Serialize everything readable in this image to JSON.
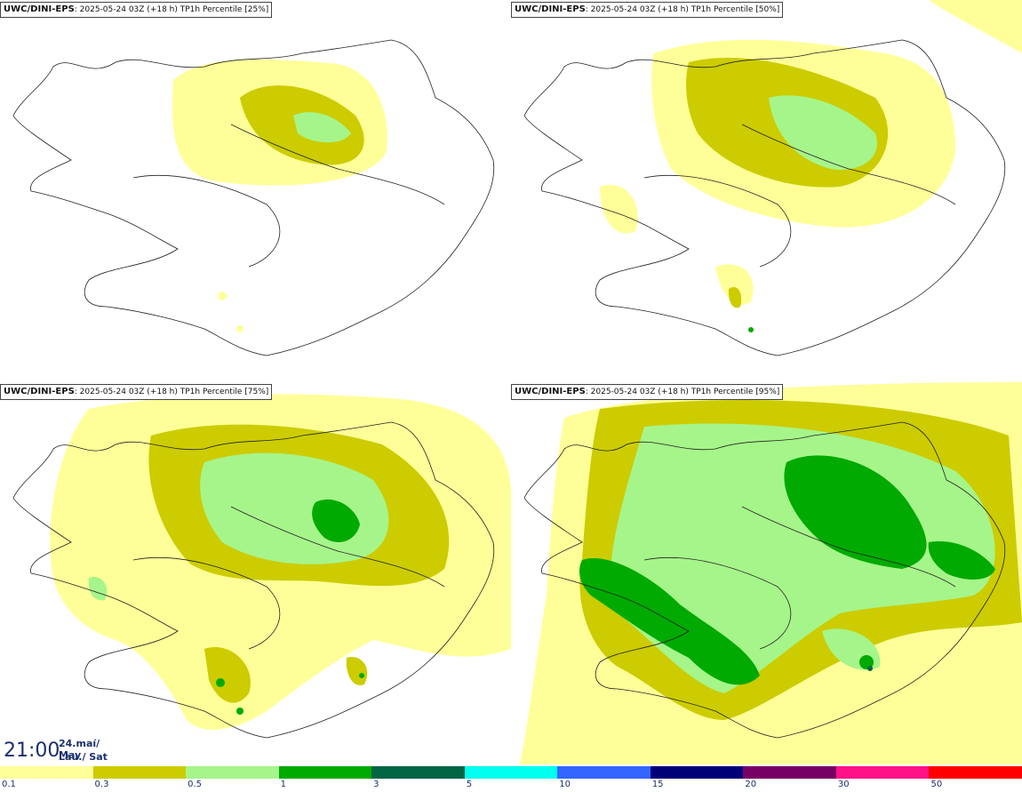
{
  "panels": [
    {
      "model": "UWC/DINI-EPS",
      "run": ": 2025-05-24 03Z (+18 h) ",
      "field": "TP1h Percentile [25%]",
      "percentile": 25
    },
    {
      "model": "UWC/DINI-EPS",
      "run": ": 2025-05-24 03Z (+18 h) ",
      "field": "TP1h Percentile [50%]",
      "percentile": 50
    },
    {
      "model": "UWC/DINI-EPS",
      "run": ": 2025-05-24 03Z (+18 h) ",
      "field": "TP1h Percentile [75%]",
      "percentile": 75
    },
    {
      "model": "UWC/DINI-EPS",
      "run": ": 2025-05-24 03Z (+18 h) ",
      "field": "TP1h Percentile [95%]",
      "percentile": 95
    }
  ],
  "valid_time": {
    "hour": "21:00",
    "date_line1": "24.maí/ May",
    "date_line2": "Lau./ Sat"
  },
  "colorbar": {
    "colors": [
      "#ffff99",
      "#cccc00",
      "#a6f58a",
      "#00aa00",
      "#006644",
      "#00ffee",
      "#3366ff",
      "#000077",
      "#770066",
      "#ff1188",
      "#ff0000"
    ],
    "ticks": [
      "0.1",
      "0.3",
      "0.5",
      "1",
      "3",
      "5",
      "10",
      "15",
      "20",
      "30",
      "50"
    ]
  }
}
